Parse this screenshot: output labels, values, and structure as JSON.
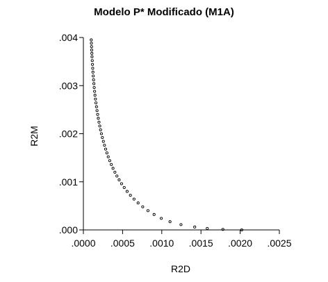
{
  "chart_data": {
    "type": "scatter",
    "title": "Modelo P* Modificado (M1A)",
    "xlabel": "R2D",
    "ylabel": "R2M",
    "xlim": [
      0.0,
      0.0025
    ],
    "ylim": [
      0.0,
      0.004
    ],
    "x_ticks": [
      ".0000",
      ".0005",
      ".0010",
      ".0015",
      ".0020",
      ".0025"
    ],
    "y_ticks": [
      ".000",
      ".001",
      ".002",
      ".003",
      ".004"
    ],
    "grid": false,
    "marker": "hollow-circle",
    "series": [
      {
        "points": [
          [
            0.0001,
            0.00395
          ],
          [
            0.000102,
            0.00388
          ],
          [
            0.000104,
            0.00381
          ],
          [
            0.000106,
            0.00374
          ],
          [
            0.000108,
            0.00367
          ],
          [
            0.00011,
            0.0036
          ],
          [
            0.000113,
            0.00352
          ],
          [
            0.000116,
            0.00344
          ],
          [
            0.000119,
            0.00336
          ],
          [
            0.000122,
            0.00328
          ],
          [
            0.000126,
            0.0032
          ],
          [
            0.00013,
            0.00312
          ],
          [
            0.000134,
            0.00304
          ],
          [
            0.000138,
            0.00296
          ],
          [
            0.000143,
            0.00288
          ],
          [
            0.000148,
            0.0028
          ],
          [
            0.000154,
            0.00272
          ],
          [
            0.00016,
            0.00264
          ],
          [
            0.000167,
            0.00256
          ],
          [
            0.000174,
            0.00248
          ],
          [
            0.000182,
            0.0024
          ],
          [
            0.00019,
            0.00232
          ],
          [
            0.000199,
            0.00224
          ],
          [
            0.000209,
            0.00216
          ],
          [
            0.000219,
            0.00208
          ],
          [
            0.00023,
            0.002
          ],
          [
            0.000242,
            0.00192
          ],
          [
            0.000255,
            0.00184
          ],
          [
            0.000269,
            0.00176
          ],
          [
            0.000284,
            0.00168
          ],
          [
            0.0003,
            0.0016
          ],
          [
            0.000317,
            0.00152
          ],
          [
            0.000336,
            0.00144
          ],
          [
            0.000356,
            0.00136
          ],
          [
            0.000378,
            0.00128
          ],
          [
            0.000402,
            0.0012
          ],
          [
            0.000428,
            0.00112
          ],
          [
            0.000456,
            0.00104
          ],
          [
            0.000487,
            0.00096
          ],
          [
            0.000521,
            0.00088
          ],
          [
            0.000558,
            0.0008
          ],
          [
            0.0006,
            0.00072
          ],
          [
            0.000646,
            0.00064
          ],
          [
            0.000698,
            0.00056
          ],
          [
            0.000757,
            0.00048
          ],
          [
            0.000824,
            0.0004
          ],
          [
            0.000902,
            0.00032
          ],
          [
            0.000994,
            0.00024
          ],
          [
            0.001105,
            0.00017
          ],
          [
            0.001245,
            0.00011
          ],
          [
            0.00142,
            6e-05
          ],
          [
            0.00158,
            3e-05
          ],
          [
            0.00178,
            1e-05
          ],
          [
            0.00202,
            0.0
          ]
        ]
      }
    ]
  }
}
